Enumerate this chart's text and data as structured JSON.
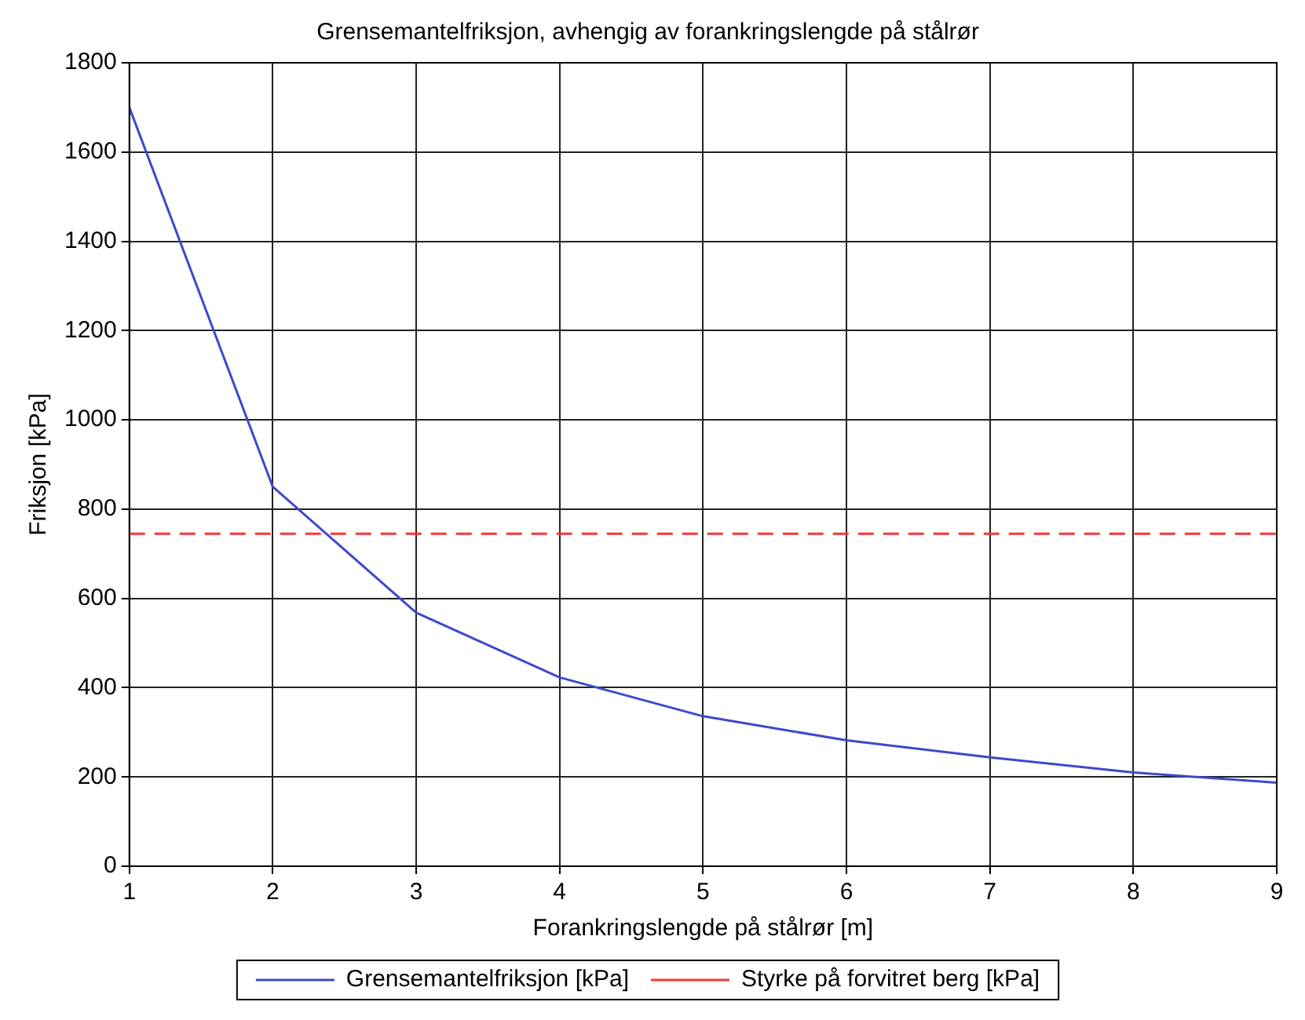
{
  "chart_data": {
    "type": "line",
    "title": "Grensemantelfriksjon, avhengig av forankringslengde på stålrør",
    "xlabel": "Forankringslengde på stålrør [m]",
    "ylabel": "Friksjon [kPa]",
    "x": [
      1,
      2,
      3,
      4,
      5,
      6,
      7,
      8,
      9
    ],
    "series": [
      {
        "name": "Grensemantelfriksjon [kPa]",
        "color": "#3f48cc",
        "values": [
          1700,
          850,
          568,
          423,
          336,
          282,
          244,
          210,
          187
        ]
      }
    ],
    "ref_lines": [
      {
        "axis": "y",
        "value": 745,
        "label": "Styrke på forvitret berg [kPa]",
        "color": "#ff3333",
        "line_style": "dashed"
      }
    ],
    "xlim": [
      1,
      9
    ],
    "xticks": [
      1,
      2,
      3,
      4,
      5,
      6,
      7,
      8,
      9
    ],
    "ylim": [
      0,
      1800
    ],
    "yticks": [
      0,
      200,
      400,
      600,
      800,
      1000,
      1200,
      1400,
      1600,
      1800
    ],
    "grid": true,
    "legend": "bottom",
    "marker": "none",
    "line_style": "solid"
  }
}
